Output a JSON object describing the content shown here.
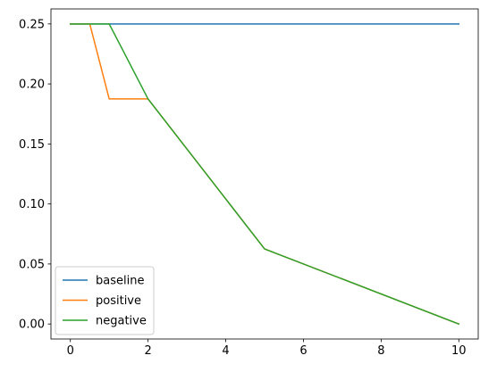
{
  "chart_data": {
    "type": "line",
    "title": "",
    "xlabel": "",
    "ylabel": "",
    "xlim": [
      -0.5,
      10.5
    ],
    "ylim": [
      -0.0125,
      0.2625
    ],
    "x_ticks": [
      0,
      2,
      4,
      6,
      8,
      10
    ],
    "x_tick_labels": [
      "0",
      "2",
      "4",
      "6",
      "8",
      "10"
    ],
    "y_ticks": [
      0.0,
      0.05,
      0.1,
      0.15,
      0.2,
      0.25
    ],
    "y_tick_labels": [
      "0.00",
      "0.05",
      "0.10",
      "0.15",
      "0.20",
      "0.25"
    ],
    "grid": false,
    "legend_position": "lower-left",
    "series": [
      {
        "name": "baseline",
        "color": "#1f77b4",
        "x": [
          0,
          10
        ],
        "y": [
          0.25,
          0.25
        ]
      },
      {
        "name": "positive",
        "color": "#ff7f0e",
        "x": [
          0,
          0.5,
          1,
          2,
          5,
          10
        ],
        "y": [
          0.25,
          0.25,
          0.1875,
          0.1875,
          0.0625,
          0.0
        ]
      },
      {
        "name": "negative",
        "color": "#2ca02c",
        "x": [
          0,
          1,
          2,
          5,
          10
        ],
        "y": [
          0.25,
          0.25,
          0.1875,
          0.0625,
          0.0
        ]
      }
    ]
  }
}
